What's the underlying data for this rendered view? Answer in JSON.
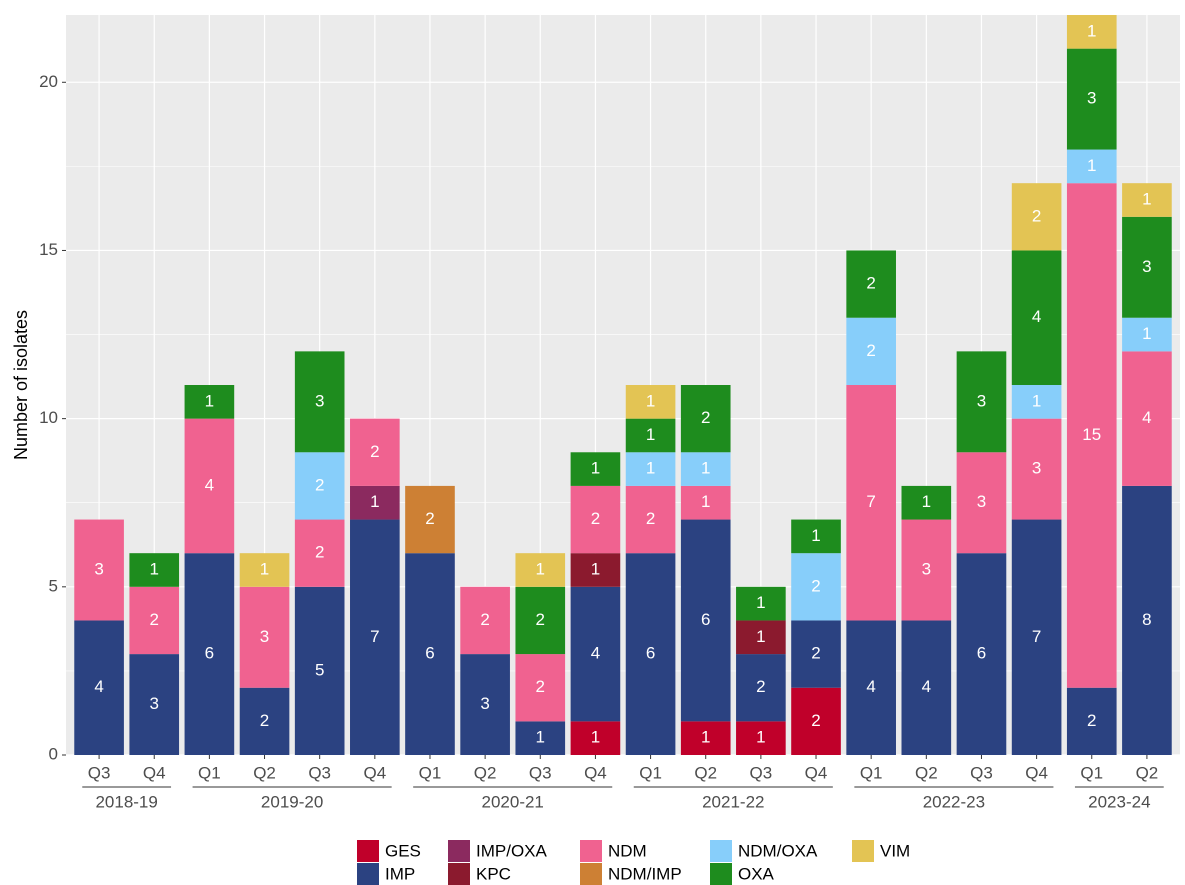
{
  "chart_data": {
    "type": "bar",
    "stacked": true,
    "y_label": "Number of isolates",
    "categories": [
      "Q3",
      "Q4",
      "Q1",
      "Q2",
      "Q3",
      "Q4",
      "Q1",
      "Q2",
      "Q3",
      "Q4",
      "Q1",
      "Q2",
      "Q3",
      "Q4",
      "Q1",
      "Q2",
      "Q3",
      "Q4",
      "Q1",
      "Q2"
    ],
    "category_groups": [
      {
        "label": "2018-19",
        "size": 2
      },
      {
        "label": "2019-20",
        "size": 4
      },
      {
        "label": "2020-21",
        "size": 4
      },
      {
        "label": "2021-22",
        "size": 4
      },
      {
        "label": "2022-23",
        "size": 4
      },
      {
        "label": "2023-24",
        "size": 2
      }
    ],
    "series": [
      {
        "name": "GES",
        "color": "#c0002a",
        "values": [
          null,
          null,
          null,
          null,
          null,
          null,
          null,
          null,
          null,
          1,
          null,
          1,
          1,
          2,
          null,
          null,
          null,
          null,
          null,
          null
        ]
      },
      {
        "name": "IMP",
        "color": "#2b4281",
        "values": [
          4,
          3,
          6,
          2,
          5,
          7,
          6,
          3,
          1,
          4,
          6,
          6,
          2,
          2,
          4,
          4,
          6,
          7,
          2,
          8
        ]
      },
      {
        "name": "IMP/OXA",
        "color": "#8b2a5f",
        "values": [
          null,
          null,
          null,
          null,
          null,
          1,
          null,
          null,
          null,
          null,
          null,
          null,
          null,
          null,
          null,
          null,
          null,
          null,
          null,
          null
        ]
      },
      {
        "name": "KPC",
        "color": "#8b1a2e",
        "values": [
          null,
          null,
          null,
          null,
          null,
          null,
          null,
          null,
          null,
          1,
          null,
          null,
          1,
          null,
          null,
          null,
          null,
          null,
          null,
          null
        ]
      },
      {
        "name": "NDM",
        "color": "#f06290",
        "values": [
          3,
          2,
          4,
          3,
          2,
          2,
          null,
          2,
          2,
          2,
          2,
          1,
          null,
          null,
          7,
          3,
          3,
          3,
          15,
          4
        ]
      },
      {
        "name": "NDM/IMP",
        "color": "#cd8034",
        "values": [
          null,
          null,
          null,
          null,
          null,
          null,
          2,
          null,
          null,
          null,
          null,
          null,
          null,
          null,
          null,
          null,
          null,
          null,
          null,
          null
        ]
      },
      {
        "name": "NDM/OXA",
        "color": "#87cefa",
        "values": [
          null,
          null,
          null,
          null,
          2,
          null,
          null,
          null,
          null,
          null,
          1,
          1,
          null,
          2,
          2,
          null,
          null,
          1,
          1,
          1
        ]
      },
      {
        "name": "OXA",
        "color": "#1e8c1e",
        "values": [
          null,
          1,
          1,
          null,
          3,
          null,
          null,
          null,
          2,
          1,
          1,
          2,
          1,
          1,
          2,
          1,
          3,
          4,
          3,
          3
        ]
      },
      {
        "name": "VIM",
        "color": "#e3c454",
        "values": [
          null,
          null,
          null,
          1,
          null,
          null,
          null,
          null,
          1,
          null,
          1,
          null,
          null,
          null,
          null,
          null,
          null,
          2,
          1,
          1
        ]
      }
    ],
    "ylim": [
      0,
      22
    ],
    "yticks": [
      0,
      5,
      10,
      15,
      20
    ],
    "grid": true,
    "legend_position": "bottom"
  }
}
